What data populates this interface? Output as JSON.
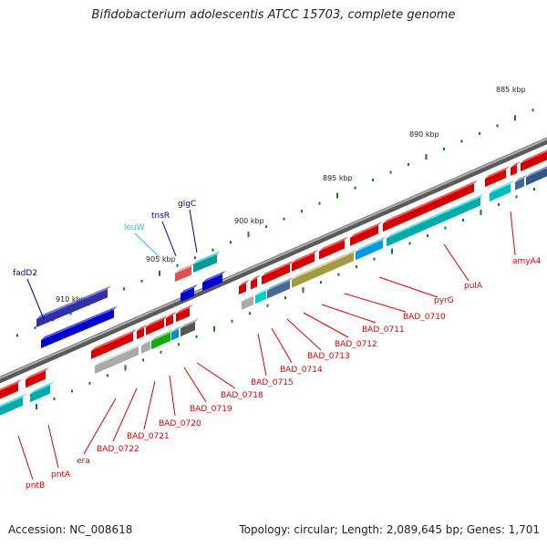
{
  "title": "Bifidobacterium adolescentis ATCC 15703, complete genome",
  "footer": {
    "accession": "Accession: NC_008618",
    "topology": "Topology: circular; Length: 2,089,645 bp; Genes: 1,701"
  },
  "ruler": [
    "885 kbp",
    "890 kbp",
    "895 kbp",
    "900 kbp",
    "905 kbp",
    "910 kbp"
  ],
  "colors": {
    "backbone": "#7a7a7a",
    "gene_label_forward": "#0000aa",
    "gene_label_trna": "#33bbee",
    "gene_label_reverse": "#dd0000",
    "tick": "#1a7a1a"
  },
  "labels_top": [
    {
      "name": "fadD2",
      "color": "#0000aa"
    },
    {
      "name": "leuW",
      "color": "#33bbee"
    },
    {
      "name": "tnsR",
      "color": "#0000aa"
    },
    {
      "name": "glgC",
      "color": "#0000aa"
    }
  ],
  "labels_bottom": [
    {
      "name": "pntB"
    },
    {
      "name": "pntA"
    },
    {
      "name": "era"
    },
    {
      "name": "BAD_0722"
    },
    {
      "name": "BAD_0721"
    },
    {
      "name": "BAD_0720"
    },
    {
      "name": "BAD_0719"
    },
    {
      "name": "BAD_0718"
    },
    {
      "name": "BAD_0715"
    },
    {
      "name": "BAD_0714"
    },
    {
      "name": "BAD_0713"
    },
    {
      "name": "BAD_0712"
    },
    {
      "name": "BAD_0711"
    },
    {
      "name": "BAD_0710"
    },
    {
      "name": "pyrG"
    },
    {
      "name": "pulA"
    },
    {
      "name": "amyA4"
    }
  ]
}
